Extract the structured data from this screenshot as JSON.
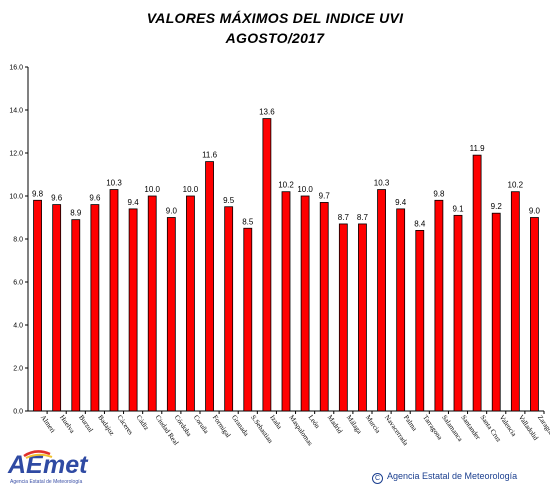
{
  "chart_data": {
    "type": "bar",
    "title": "VALORES MÁXIMOS DEL INDICE UVI",
    "subtitle": "AGOSTO/2017",
    "categories": [
      "Almeri",
      "Huelva",
      "Burzul",
      "Badajoz",
      "Cáceres",
      "Cádiz",
      "Ciudad Real",
      "Córdoba",
      "Coruña",
      "Formigal",
      "Granada",
      "S.Sebastian",
      "Izaña",
      "Maspalomas",
      "León",
      "Madrid",
      "Málaga",
      "Murcia",
      "Navacerrada",
      "Palma",
      "Tarragona",
      "Salamanca",
      "Santander",
      "Santa Cruz",
      "Valencia",
      "Valladolid",
      "Zaragoza"
    ],
    "series": [
      {
        "values": [
          9.8,
          9.6,
          8.9,
          9.6,
          10.3,
          9.4,
          10.0,
          9.0,
          10.0,
          11.6,
          9.5,
          8.5,
          13.6,
          10.2,
          10.0,
          9.7,
          8.7,
          8.7,
          10.3,
          9.4,
          8.4,
          9.8,
          9.1,
          11.9,
          9.2,
          10.2,
          9.0
        ]
      }
    ],
    "value_labels": [
      "9.8",
      "9.6",
      "8.9",
      "9.6",
      "10.3",
      "9.4",
      "10.0",
      "9.0",
      "10.0",
      "11.6",
      "9.5",
      "8.5",
      "13.6",
      "10.2",
      "10.0",
      "9.7",
      "8.7",
      "8.7",
      "10.3",
      "9.4",
      "8.4",
      "9.8",
      "9.1",
      "11.9",
      "9.2",
      "10.2",
      "9.0"
    ],
    "y_ticks": [
      "0.0",
      "2.0",
      "4.0",
      "6.0",
      "8.0",
      "10.0",
      "12.0",
      "14.0",
      "16.0"
    ],
    "ylim": [
      0,
      16
    ],
    "xlabel": "",
    "ylabel": "",
    "grid": false,
    "colors": {
      "bar": "#ff0000",
      "bar_stroke": "#000000",
      "axis": "#000000"
    }
  },
  "branding": {
    "logo_text": "AEMet",
    "logo_subtext": "Agencia Estatal de Meteorología",
    "credit_symbol": "C",
    "credit_text": "Agencia Estatal de Meteorología",
    "colors": {
      "logo_blue": "#2f4aa3",
      "logo_red": "#e0302a",
      "logo_yellow": "#f2c230"
    }
  }
}
